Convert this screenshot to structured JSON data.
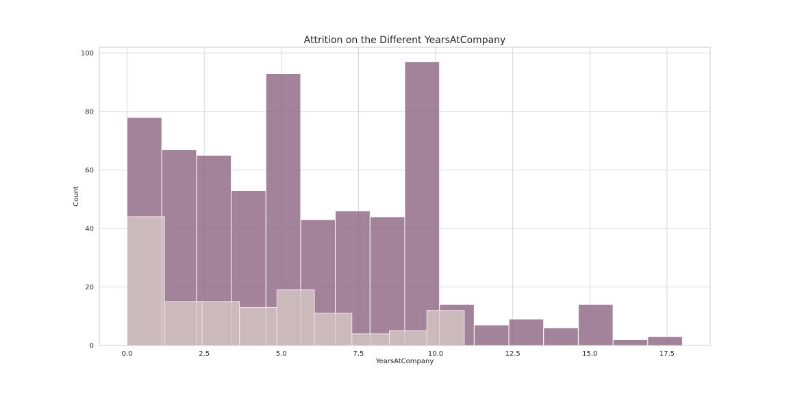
{
  "chart_data": {
    "type": "histogram",
    "title": "Attrition on the Different YearsAtCompany",
    "xlabel": "YearsAtCompany",
    "ylabel": "Count",
    "xlim": [
      -0.9,
      18.9
    ],
    "ylim": [
      0,
      102
    ],
    "xticks": [
      "0.0",
      "2.5",
      "5.0",
      "7.5",
      "10.0",
      "12.5",
      "15.0",
      "17.5"
    ],
    "xtick_values": [
      0,
      2.5,
      5,
      7.5,
      10,
      12.5,
      15,
      17.5
    ],
    "yticks": [
      "0",
      "20",
      "40",
      "60",
      "80",
      "100"
    ],
    "ytick_values": [
      0,
      20,
      40,
      60,
      80,
      100
    ],
    "grid": true,
    "colors": {
      "series_a": "#8b6582",
      "series_b": "#d7c7c4",
      "edge": "#ffffff",
      "grid": "#cccccc"
    },
    "series": [
      {
        "bins": [
          [
            0.0,
            1.125,
            78
          ],
          [
            1.125,
            2.25,
            67
          ],
          [
            2.25,
            3.375,
            65
          ],
          [
            3.375,
            4.5,
            53
          ],
          [
            4.5,
            5.625,
            93
          ],
          [
            5.625,
            6.75,
            43
          ],
          [
            6.75,
            7.875,
            46
          ],
          [
            7.875,
            9.0,
            44
          ],
          [
            9.0,
            10.125,
            97
          ],
          [
            10.125,
            11.25,
            14
          ],
          [
            11.25,
            12.375,
            7
          ],
          [
            12.375,
            13.5,
            9
          ],
          [
            13.5,
            14.625,
            6
          ],
          [
            14.625,
            15.75,
            14
          ],
          [
            15.75,
            16.875,
            2
          ],
          [
            16.875,
            18.0,
            3
          ]
        ]
      },
      {
        "bins": [
          [
            0.0,
            1.214,
            44
          ],
          [
            1.214,
            2.429,
            15
          ],
          [
            2.429,
            3.643,
            15
          ],
          [
            3.643,
            4.857,
            13
          ],
          [
            4.857,
            6.071,
            19
          ],
          [
            6.071,
            7.286,
            11
          ],
          [
            7.286,
            8.5,
            4
          ],
          [
            8.5,
            9.714,
            5
          ],
          [
            9.714,
            10.929,
            12
          ]
        ]
      }
    ]
  }
}
